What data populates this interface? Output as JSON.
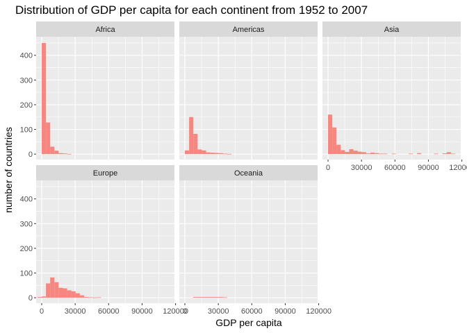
{
  "chart_data": {
    "type": "bar",
    "chart_kind": "faceted histogram",
    "title": "Distribution of GDP per capita for each continent from 1952 to 2007",
    "xlabel": "GDP per capita",
    "ylabel": "number of countries",
    "xlim": [
      -5000,
      119000
    ],
    "ylim": [
      -22,
      475
    ],
    "x_ticks": [
      0,
      30000,
      60000,
      90000,
      120000
    ],
    "x_tick_labels": [
      "0",
      "30000",
      "60000",
      "90000",
      "120000"
    ],
    "y_ticks": [
      0,
      100,
      200,
      300,
      400
    ],
    "y_tick_labels": [
      "0",
      "100",
      "200",
      "300",
      "400"
    ],
    "bin_width": 3800,
    "bar_color": "#F8766D",
    "bar_opacity": 0.85,
    "panel_background": "#EBEBEB",
    "strip_background": "#D9D9D9",
    "grid_color": "#FFFFFF",
    "grid": true,
    "facets": [
      {
        "name": "Africa",
        "bins": [
          {
            "x0": 0,
            "x1": 3800,
            "count": 450
          },
          {
            "x0": 3800,
            "x1": 7600,
            "count": 128
          },
          {
            "x0": 7600,
            "x1": 11400,
            "count": 30
          },
          {
            "x0": 11400,
            "x1": 15200,
            "count": 14
          },
          {
            "x0": 15200,
            "x1": 19000,
            "count": 4
          },
          {
            "x0": 19000,
            "x1": 22800,
            "count": 3
          },
          {
            "x0": 22800,
            "x1": 26600,
            "count": 1
          }
        ]
      },
      {
        "name": "Americas",
        "bins": [
          {
            "x0": 0,
            "x1": 3800,
            "count": 15
          },
          {
            "x0": 3800,
            "x1": 7600,
            "count": 150
          },
          {
            "x0": 7600,
            "x1": 11400,
            "count": 82
          },
          {
            "x0": 11400,
            "x1": 15200,
            "count": 19
          },
          {
            "x0": 15200,
            "x1": 19000,
            "count": 15
          },
          {
            "x0": 19000,
            "x1": 22800,
            "count": 7
          },
          {
            "x0": 22800,
            "x1": 26600,
            "count": 6
          },
          {
            "x0": 26600,
            "x1": 30400,
            "count": 5
          },
          {
            "x0": 30400,
            "x1": 34200,
            "count": 4
          },
          {
            "x0": 34200,
            "x1": 38000,
            "count": 2
          },
          {
            "x0": 38000,
            "x1": 41800,
            "count": 1
          }
        ]
      },
      {
        "name": "Asia",
        "bins": [
          {
            "x0": 0,
            "x1": 3800,
            "count": 160
          },
          {
            "x0": 3800,
            "x1": 7600,
            "count": 108
          },
          {
            "x0": 7600,
            "x1": 11400,
            "count": 38
          },
          {
            "x0": 11400,
            "x1": 15200,
            "count": 16
          },
          {
            "x0": 15200,
            "x1": 19000,
            "count": 9
          },
          {
            "x0": 19000,
            "x1": 22800,
            "count": 20
          },
          {
            "x0": 22800,
            "x1": 26600,
            "count": 14
          },
          {
            "x0": 26600,
            "x1": 30400,
            "count": 10
          },
          {
            "x0": 30400,
            "x1": 34200,
            "count": 8
          },
          {
            "x0": 34200,
            "x1": 38000,
            "count": 3
          },
          {
            "x0": 38000,
            "x1": 41800,
            "count": 6
          },
          {
            "x0": 41800,
            "x1": 45600,
            "count": 4
          },
          {
            "x0": 45600,
            "x1": 49400,
            "count": 2
          },
          {
            "x0": 49400,
            "x1": 53200,
            "count": 2
          },
          {
            "x0": 57000,
            "x1": 60800,
            "count": 2
          },
          {
            "x0": 72200,
            "x1": 76000,
            "count": 2
          },
          {
            "x0": 79800,
            "x1": 83600,
            "count": 4
          },
          {
            "x0": 95000,
            "x1": 98800,
            "count": 2
          },
          {
            "x0": 102600,
            "x1": 106400,
            "count": 3
          },
          {
            "x0": 106400,
            "x1": 110200,
            "count": 8
          },
          {
            "x0": 110200,
            "x1": 114000,
            "count": 2
          }
        ]
      },
      {
        "name": "Europe",
        "bins": [
          {
            "x0": -3800,
            "x1": 0,
            "count": 3
          },
          {
            "x0": 0,
            "x1": 3800,
            "count": 5
          },
          {
            "x0": 3800,
            "x1": 7600,
            "count": 58
          },
          {
            "x0": 7600,
            "x1": 11400,
            "count": 82
          },
          {
            "x0": 11400,
            "x1": 15200,
            "count": 63
          },
          {
            "x0": 15200,
            "x1": 19000,
            "count": 40
          },
          {
            "x0": 19000,
            "x1": 22800,
            "count": 38
          },
          {
            "x0": 22800,
            "x1": 26600,
            "count": 30
          },
          {
            "x0": 26600,
            "x1": 30400,
            "count": 26
          },
          {
            "x0": 30400,
            "x1": 34200,
            "count": 18
          },
          {
            "x0": 34200,
            "x1": 38000,
            "count": 10
          },
          {
            "x0": 38000,
            "x1": 41800,
            "count": 3
          },
          {
            "x0": 41800,
            "x1": 45600,
            "count": 2
          },
          {
            "x0": 45600,
            "x1": 49400,
            "count": 1
          },
          {
            "x0": 49400,
            "x1": 53200,
            "count": 2
          }
        ]
      },
      {
        "name": "Oceania",
        "bins": [
          {
            "x0": 7600,
            "x1": 11400,
            "count": 3
          },
          {
            "x0": 11400,
            "x1": 15200,
            "count": 3
          },
          {
            "x0": 15200,
            "x1": 19000,
            "count": 3
          },
          {
            "x0": 19000,
            "x1": 22800,
            "count": 3
          },
          {
            "x0": 22800,
            "x1": 26600,
            "count": 3
          },
          {
            "x0": 26600,
            "x1": 30400,
            "count": 3
          },
          {
            "x0": 30400,
            "x1": 34200,
            "count": 3
          },
          {
            "x0": 34200,
            "x1": 38000,
            "count": 2
          }
        ]
      }
    ]
  }
}
